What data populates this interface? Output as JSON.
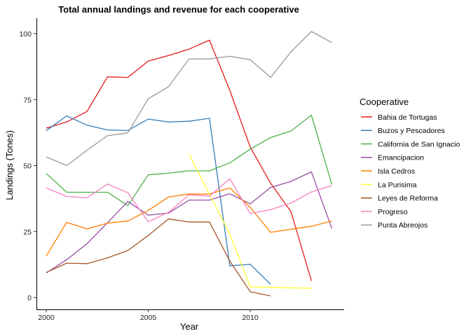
{
  "chart_data": {
    "type": "line",
    "title": "Total annual landings and revenue for each cooperative",
    "xlabel": "Year",
    "ylabel": "Landings (Tones)",
    "xlim": [
      2000,
      2014
    ],
    "ylim": [
      -2,
      105
    ],
    "x_ticks": [
      2000,
      2005,
      2010
    ],
    "y_ticks": [
      0,
      25,
      50,
      75,
      100
    ],
    "grid": false,
    "legend": {
      "title": "Cooperative",
      "position": "right"
    },
    "series": [
      {
        "name": "Bahia de Tortugas",
        "color": "#E41A1C",
        "points": [
          [
            2000,
            64.2
          ],
          [
            2001,
            66.5
          ],
          [
            2002,
            70.5
          ],
          [
            2003,
            83.6
          ],
          [
            2004,
            83.4
          ],
          [
            2005,
            89.6
          ],
          [
            2006,
            91.7
          ],
          [
            2007,
            94.1
          ],
          [
            2008,
            97.5
          ],
          [
            2009,
            78.5
          ],
          [
            2010,
            57.0
          ],
          [
            2011,
            43.3
          ],
          [
            2012,
            32.5
          ],
          [
            2013,
            6.3
          ]
        ]
      },
      {
        "name": "Buzos y Pescadores",
        "color": "#377EB8",
        "points": [
          [
            2000,
            63.2
          ],
          [
            2001,
            68.8
          ],
          [
            2002,
            65.3
          ],
          [
            2003,
            63.5
          ],
          [
            2004,
            63.3
          ],
          [
            2005,
            67.6
          ],
          [
            2006,
            66.5
          ],
          [
            2007,
            66.8
          ],
          [
            2008,
            67.9
          ],
          [
            2009,
            12.0
          ],
          [
            2010,
            12.6
          ],
          [
            2011,
            5.0
          ]
        ]
      },
      {
        "name": "California de San Ignacio",
        "color": "#4DAF4A",
        "points": [
          [
            2000,
            47.0
          ],
          [
            2001,
            39.9
          ],
          [
            2002,
            39.9
          ],
          [
            2003,
            39.9
          ],
          [
            2004,
            34.8
          ],
          [
            2005,
            46.5
          ],
          [
            2006,
            47.1
          ],
          [
            2007,
            48.0
          ],
          [
            2008,
            48.0
          ],
          [
            2009,
            51.0
          ],
          [
            2010,
            56.2
          ],
          [
            2011,
            60.6
          ],
          [
            2012,
            63.1
          ],
          [
            2013,
            69.1
          ],
          [
            2014,
            42.9
          ]
        ]
      },
      {
        "name": "Emancipacion",
        "color": "#984EA3",
        "points": [
          [
            2000,
            9.3
          ],
          [
            2001,
            14.3
          ],
          [
            2002,
            20.4
          ],
          [
            2003,
            28.3
          ],
          [
            2004,
            36.4
          ],
          [
            2005,
            31.2
          ],
          [
            2006,
            32.0
          ],
          [
            2007,
            36.9
          ],
          [
            2008,
            36.9
          ],
          [
            2009,
            39.3
          ],
          [
            2010,
            35.5
          ],
          [
            2011,
            41.7
          ],
          [
            2012,
            44.0
          ],
          [
            2013,
            47.6
          ],
          [
            2014,
            26.2
          ]
        ]
      },
      {
        "name": "Isla Cedros",
        "color": "#FF7F00",
        "points": [
          [
            2000,
            15.7
          ],
          [
            2001,
            28.5
          ],
          [
            2002,
            26.0
          ],
          [
            2003,
            28.2
          ],
          [
            2004,
            29.0
          ],
          [
            2005,
            33.0
          ],
          [
            2006,
            38.1
          ],
          [
            2007,
            39.2
          ],
          [
            2008,
            39.2
          ],
          [
            2009,
            41.5
          ],
          [
            2010,
            34.2
          ],
          [
            2011,
            24.7
          ],
          [
            2013,
            27.0
          ],
          [
            2014,
            29.0
          ]
        ]
      },
      {
        "name": "La Purisima",
        "color": "#FFFF33",
        "points": [
          [
            2007,
            54.3
          ],
          [
            2009,
            24.0
          ],
          [
            2010,
            4.0
          ],
          [
            2013,
            3.5
          ]
        ]
      },
      {
        "name": "Leyes de Reforma",
        "color": "#A65628",
        "points": [
          [
            2000,
            9.5
          ],
          [
            2001,
            13.0
          ],
          [
            2002,
            12.8
          ],
          [
            2003,
            15.0
          ],
          [
            2004,
            17.8
          ],
          [
            2005,
            23.5
          ],
          [
            2006,
            29.8
          ],
          [
            2007,
            28.6
          ],
          [
            2008,
            28.6
          ],
          [
            2009,
            13.8
          ],
          [
            2010,
            2.2
          ],
          [
            2011,
            0.6
          ]
        ]
      },
      {
        "name": "Progreso",
        "color": "#F781BF",
        "points": [
          [
            2000,
            41.5
          ],
          [
            2001,
            38.3
          ],
          [
            2002,
            37.8
          ],
          [
            2003,
            43.0
          ],
          [
            2004,
            39.7
          ],
          [
            2005,
            28.7
          ],
          [
            2006,
            32.3
          ],
          [
            2007,
            38.9
          ],
          [
            2008,
            38.4
          ],
          [
            2009,
            45.0
          ],
          [
            2010,
            31.8
          ],
          [
            2011,
            33.3
          ],
          [
            2012,
            35.8
          ],
          [
            2013,
            40.0
          ],
          [
            2014,
            42.4
          ]
        ]
      },
      {
        "name": "Punta Abreojos",
        "color": "#999999",
        "points": [
          [
            2000,
            53.3
          ],
          [
            2001,
            50.0
          ],
          [
            2002,
            55.8
          ],
          [
            2003,
            61.3
          ],
          [
            2004,
            62.4
          ],
          [
            2005,
            75.3
          ],
          [
            2006,
            79.9
          ],
          [
            2007,
            90.4
          ],
          [
            2008,
            90.4
          ],
          [
            2009,
            91.4
          ],
          [
            2010,
            90.1
          ],
          [
            2011,
            83.4
          ],
          [
            2012,
            93.1
          ],
          [
            2013,
            100.8
          ],
          [
            2014,
            96.6
          ]
        ]
      }
    ]
  }
}
